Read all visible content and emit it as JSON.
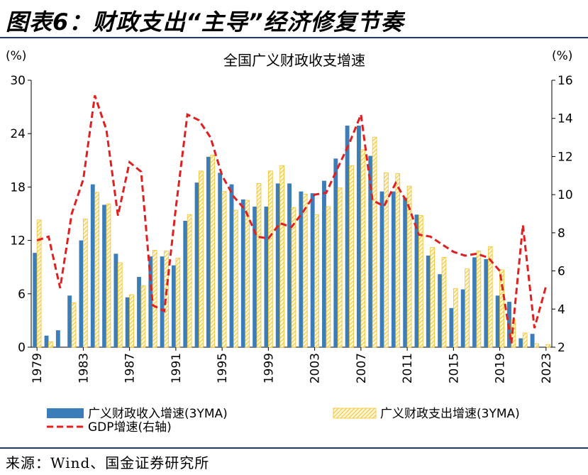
{
  "figure_title": "图表6：财政支出“主导”经济修复节奏",
  "source": "来源：Wind、国金证券研究所",
  "colors": {
    "income_bar": "#3b7db8",
    "expense_bar_stroke": "#f2c12e",
    "gdp_line": "#e02020",
    "rule": "#1f3864"
  },
  "chart_data": {
    "type": "bar",
    "title": "全国广义财政收支增速",
    "y_unit_left": "(%)",
    "y_unit_right": "(%)",
    "ylim_left": [
      0,
      30
    ],
    "ylim_right": [
      2,
      16
    ],
    "yticks_left": [
      "0",
      "6",
      "12",
      "18",
      "24",
      "30"
    ],
    "yticks_right": [
      "2",
      "4",
      "6",
      "8",
      "10",
      "12",
      "14",
      "16"
    ],
    "x_tick_labels": [
      "1979",
      "1983",
      "1987",
      "1991",
      "1995",
      "1999",
      "2003",
      "2007",
      "2011",
      "2015",
      "2019",
      "2023"
    ],
    "x": [
      1979,
      1980,
      1981,
      1982,
      1983,
      1984,
      1985,
      1986,
      1987,
      1988,
      1989,
      1990,
      1991,
      1992,
      1993,
      1994,
      1995,
      1996,
      1997,
      1998,
      1999,
      2000,
      2001,
      2002,
      2003,
      2004,
      2005,
      2006,
      2007,
      2008,
      2009,
      2010,
      2011,
      2012,
      2013,
      2014,
      2015,
      2016,
      2017,
      2018,
      2019,
      2020,
      2021,
      2022,
      2023
    ],
    "legend": [
      "广义财政收入增速(3YMA)",
      "广义财政支出增速(3YMA)",
      "GDP增速(右轴)"
    ],
    "series": [
      {
        "name": "广义财政收入增速(3YMA)",
        "type": "bar",
        "axis": "left",
        "values": [
          10.6,
          1.3,
          1.9,
          5.8,
          12.0,
          18.3,
          16.0,
          10.5,
          5.6,
          7.9,
          10.2,
          10.2,
          9.2,
          14.2,
          18.5,
          21.4,
          19.6,
          18.3,
          16.6,
          15.8,
          15.8,
          18.4,
          18.4,
          17.5,
          17.3,
          18.7,
          21.2,
          24.9,
          24.9,
          21.5,
          17.5,
          17.5,
          16.8,
          14.9,
          10.3,
          8.2,
          4.4,
          6.5,
          10.1,
          9.9,
          5.8,
          5.1,
          1.0,
          1.5,
          0.0
        ]
      },
      {
        "name": "广义财政支出增速(3YMA)",
        "type": "bar",
        "axis": "left",
        "values": [
          14.3,
          0.6,
          0.0,
          5.0,
          14.4,
          17.4,
          16.1,
          9.5,
          5.9,
          6.9,
          10.9,
          10.8,
          10.0,
          14.9,
          19.8,
          21.6,
          17.5,
          15.4,
          16.5,
          18.4,
          19.8,
          20.4,
          15.7,
          17.2,
          14.9,
          15.8,
          17.9,
          20.4,
          22.2,
          23.6,
          19.6,
          19.5,
          18.1,
          14.8,
          11.2,
          10.1,
          6.6,
          8.8,
          10.8,
          11.3,
          8.7,
          3.1,
          1.6,
          0.4,
          0.3
        ]
      },
      {
        "name": "GDP增速(右轴)",
        "type": "line",
        "axis": "right",
        "values": [
          7.6,
          7.8,
          5.1,
          9.0,
          10.8,
          15.2,
          13.4,
          8.9,
          11.7,
          11.2,
          4.2,
          3.9,
          9.3,
          14.2,
          13.9,
          13.0,
          11.0,
          9.9,
          9.2,
          7.8,
          7.7,
          8.5,
          8.3,
          9.1,
          10.0,
          10.1,
          11.4,
          12.7,
          14.2,
          9.7,
          9.4,
          10.6,
          9.6,
          7.9,
          7.8,
          7.4,
          7.0,
          6.8,
          6.9,
          6.7,
          6.0,
          2.2,
          8.4,
          3.0,
          5.2
        ]
      }
    ]
  }
}
